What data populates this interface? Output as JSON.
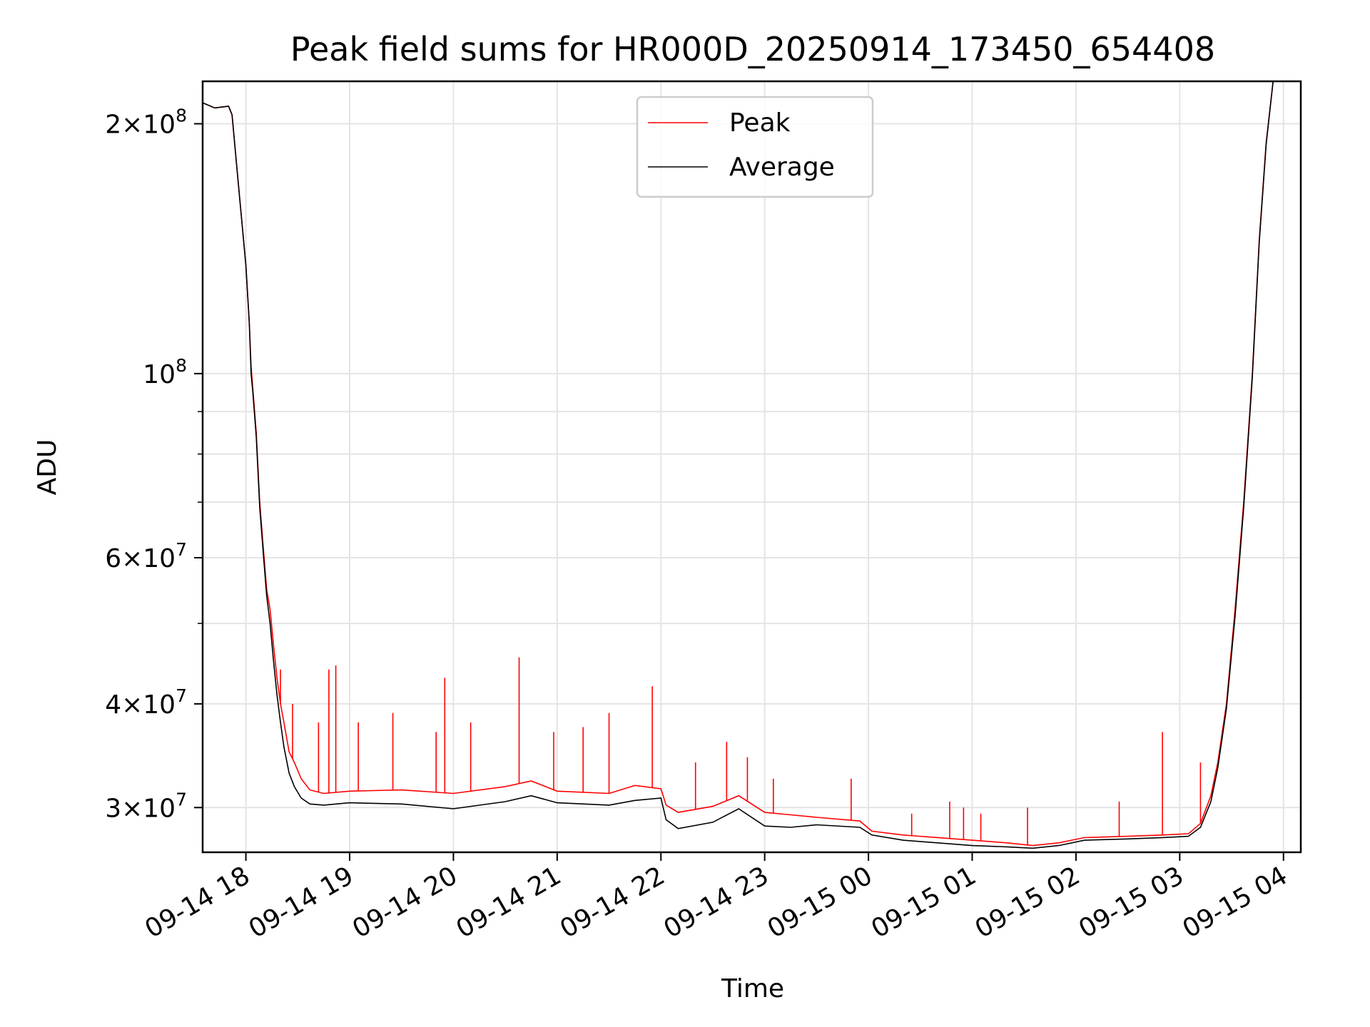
{
  "chart_data": {
    "type": "line",
    "title": "Peak field sums for HR000D_20250914_173450_654408",
    "xlabel": "Time",
    "ylabel": "ADU",
    "x_axis": {
      "start": "2025-09-14T17:35",
      "end": "2025-09-15T04:10",
      "ticks": [
        {
          "value": "2025-09-14T18:00",
          "label": "09-14 18"
        },
        {
          "value": "2025-09-14T19:00",
          "label": "09-14 19"
        },
        {
          "value": "2025-09-14T20:00",
          "label": "09-14 20"
        },
        {
          "value": "2025-09-14T21:00",
          "label": "09-14 21"
        },
        {
          "value": "2025-09-14T22:00",
          "label": "09-14 22"
        },
        {
          "value": "2025-09-14T23:00",
          "label": "09-14 23"
        },
        {
          "value": "2025-09-15T00:00",
          "label": "09-15 00"
        },
        {
          "value": "2025-09-15T01:00",
          "label": "09-15 01"
        },
        {
          "value": "2025-09-15T02:00",
          "label": "09-15 02"
        },
        {
          "value": "2025-09-15T03:00",
          "label": "09-15 03"
        },
        {
          "value": "2025-09-15T04:00",
          "label": "09-15 04"
        }
      ]
    },
    "y_axis": {
      "scale": "log",
      "ylim": [
        26500000,
        225000000
      ],
      "major_ticks": [
        {
          "value": 30000000,
          "mantissa": "3",
          "exponent": "7"
        },
        {
          "value": 40000000,
          "mantissa": "4",
          "exponent": "7"
        },
        {
          "value": 60000000,
          "mantissa": "6",
          "exponent": "7"
        },
        {
          "value": 100000000,
          "mantissa": "",
          "exponent": "8"
        },
        {
          "value": 200000000,
          "mantissa": "2",
          "exponent": "8"
        }
      ],
      "minor_ticks": [
        50000000,
        70000000,
        80000000,
        90000000
      ]
    },
    "grid": true,
    "legend_position": "upper center",
    "series": [
      {
        "name": "Peak",
        "color": "#ff0000",
        "points": [
          [
            "2025-09-14T17:35",
            212000000
          ],
          [
            "2025-09-14T17:42",
            209000000
          ],
          [
            "2025-09-14T17:50",
            210000000
          ],
          [
            "2025-09-14T17:52",
            205000000
          ],
          [
            "2025-09-14T17:55",
            175000000
          ],
          [
            "2025-09-14T18:00",
            135000000
          ],
          [
            "2025-09-14T18:02",
            115000000
          ],
          [
            "2025-09-14T18:03",
            102000000
          ],
          [
            "2025-09-14T18:04",
            96000000
          ],
          [
            "2025-09-14T18:06",
            85000000
          ],
          [
            "2025-09-14T18:08",
            70000000
          ],
          [
            "2025-09-14T18:10",
            62000000
          ],
          [
            "2025-09-14T18:12",
            55000000
          ],
          [
            "2025-09-14T18:14",
            52000000
          ],
          [
            "2025-09-14T18:16",
            47000000
          ],
          [
            "2025-09-14T18:18",
            43000000
          ],
          [
            "2025-09-14T18:20",
            40000000
          ],
          [
            "2025-09-14T18:22",
            38000000
          ],
          [
            "2025-09-14T18:25",
            35000000
          ],
          [
            "2025-09-14T18:28",
            34000000
          ],
          [
            "2025-09-14T18:32",
            32500000
          ],
          [
            "2025-09-14T18:37",
            31500000
          ],
          [
            "2025-09-14T18:45",
            31200000
          ],
          [
            "2025-09-14T19:00",
            31400000
          ],
          [
            "2025-09-14T19:30",
            31500000
          ],
          [
            "2025-09-14T20:00",
            31200000
          ],
          [
            "2025-09-14T20:30",
            31800000
          ],
          [
            "2025-09-14T20:45",
            32300000
          ],
          [
            "2025-09-14T21:00",
            31400000
          ],
          [
            "2025-09-14T21:30",
            31200000
          ],
          [
            "2025-09-14T21:45",
            31900000
          ],
          [
            "2025-09-14T22:00",
            31600000
          ],
          [
            "2025-09-14T22:03",
            30200000
          ],
          [
            "2025-09-14T22:10",
            29600000
          ],
          [
            "2025-09-14T22:30",
            30100000
          ],
          [
            "2025-09-14T22:45",
            31000000
          ],
          [
            "2025-09-14T23:00",
            29600000
          ],
          [
            "2025-09-14T23:15",
            29400000
          ],
          [
            "2025-09-14T23:30",
            29200000
          ],
          [
            "2025-09-14T23:55",
            28900000
          ],
          [
            "2025-09-15T00:02",
            28100000
          ],
          [
            "2025-09-15T00:20",
            27800000
          ],
          [
            "2025-09-15T00:40",
            27600000
          ],
          [
            "2025-09-15T01:00",
            27400000
          ],
          [
            "2025-09-15T01:20",
            27200000
          ],
          [
            "2025-09-15T01:35",
            27000000
          ],
          [
            "2025-09-15T01:50",
            27200000
          ],
          [
            "2025-09-15T02:05",
            27600000
          ],
          [
            "2025-09-15T02:30",
            27700000
          ],
          [
            "2025-09-15T02:50",
            27800000
          ],
          [
            "2025-09-15T03:05",
            27900000
          ],
          [
            "2025-09-15T03:12",
            28700000
          ],
          [
            "2025-09-15T03:18",
            31000000
          ],
          [
            "2025-09-15T03:22",
            34000000
          ],
          [
            "2025-09-15T03:27",
            40000000
          ],
          [
            "2025-09-15T03:32",
            52000000
          ],
          [
            "2025-09-15T03:37",
            70000000
          ],
          [
            "2025-09-15T03:42",
            100000000
          ],
          [
            "2025-09-15T03:46",
            145000000
          ],
          [
            "2025-09-15T03:50",
            190000000
          ],
          [
            "2025-09-15T03:54",
            225000000
          ]
        ],
        "spikes": [
          [
            "2025-09-14T18:20",
            44000000
          ],
          [
            "2025-09-14T18:27",
            40000000
          ],
          [
            "2025-09-14T18:42",
            38000000
          ],
          [
            "2025-09-14T18:48",
            44000000
          ],
          [
            "2025-09-14T18:52",
            44500000
          ],
          [
            "2025-09-14T19:05",
            38000000
          ],
          [
            "2025-09-14T19:25",
            39000000
          ],
          [
            "2025-09-14T19:50",
            37000000
          ],
          [
            "2025-09-14T19:55",
            43000000
          ],
          [
            "2025-09-14T20:10",
            38000000
          ],
          [
            "2025-09-14T20:38",
            45500000
          ],
          [
            "2025-09-14T20:58",
            37000000
          ],
          [
            "2025-09-14T21:15",
            37500000
          ],
          [
            "2025-09-14T21:30",
            39000000
          ],
          [
            "2025-09-14T21:55",
            42000000
          ],
          [
            "2025-09-14T22:20",
            34000000
          ],
          [
            "2025-09-14T22:38",
            36000000
          ],
          [
            "2025-09-14T22:50",
            34500000
          ],
          [
            "2025-09-14T23:05",
            32500000
          ],
          [
            "2025-09-14T23:50",
            32500000
          ],
          [
            "2025-09-15T00:25",
            29500000
          ],
          [
            "2025-09-15T00:47",
            30500000
          ],
          [
            "2025-09-15T00:55",
            30000000
          ],
          [
            "2025-09-15T01:05",
            29500000
          ],
          [
            "2025-09-15T01:32",
            30000000
          ],
          [
            "2025-09-15T02:25",
            30500000
          ],
          [
            "2025-09-15T02:50",
            37000000
          ],
          [
            "2025-09-15T03:12",
            34000000
          ]
        ]
      },
      {
        "name": "Average",
        "color": "#000000",
        "points": [
          [
            "2025-09-14T17:35",
            212000000
          ],
          [
            "2025-09-14T17:42",
            209000000
          ],
          [
            "2025-09-14T17:50",
            210000000
          ],
          [
            "2025-09-14T17:52",
            205000000
          ],
          [
            "2025-09-14T17:55",
            175000000
          ],
          [
            "2025-09-14T18:00",
            135000000
          ],
          [
            "2025-09-14T18:02",
            115000000
          ],
          [
            "2025-09-14T18:03",
            100000000
          ],
          [
            "2025-09-14T18:04",
            95000000
          ],
          [
            "2025-09-14T18:06",
            84000000
          ],
          [
            "2025-09-14T18:08",
            69000000
          ],
          [
            "2025-09-14T18:10",
            61000000
          ],
          [
            "2025-09-14T18:12",
            54000000
          ],
          [
            "2025-09-14T18:14",
            50000000
          ],
          [
            "2025-09-14T18:16",
            45000000
          ],
          [
            "2025-09-14T18:18",
            41000000
          ],
          [
            "2025-09-14T18:20",
            38000000
          ],
          [
            "2025-09-14T18:22",
            35500000
          ],
          [
            "2025-09-14T18:25",
            33000000
          ],
          [
            "2025-09-14T18:28",
            31800000
          ],
          [
            "2025-09-14T18:32",
            30800000
          ],
          [
            "2025-09-14T18:37",
            30300000
          ],
          [
            "2025-09-14T18:45",
            30200000
          ],
          [
            "2025-09-14T19:00",
            30400000
          ],
          [
            "2025-09-14T19:30",
            30300000
          ],
          [
            "2025-09-14T20:00",
            29900000
          ],
          [
            "2025-09-14T20:30",
            30500000
          ],
          [
            "2025-09-14T20:45",
            31000000
          ],
          [
            "2025-09-14T21:00",
            30400000
          ],
          [
            "2025-09-14T21:30",
            30200000
          ],
          [
            "2025-09-14T21:45",
            30600000
          ],
          [
            "2025-09-14T22:00",
            30800000
          ],
          [
            "2025-09-14T22:03",
            29000000
          ],
          [
            "2025-09-14T22:10",
            28300000
          ],
          [
            "2025-09-14T22:30",
            28800000
          ],
          [
            "2025-09-14T22:45",
            29900000
          ],
          [
            "2025-09-14T23:00",
            28500000
          ],
          [
            "2025-09-14T23:15",
            28400000
          ],
          [
            "2025-09-14T23:30",
            28600000
          ],
          [
            "2025-09-14T23:55",
            28400000
          ],
          [
            "2025-09-15T00:02",
            27800000
          ],
          [
            "2025-09-15T00:20",
            27400000
          ],
          [
            "2025-09-15T00:40",
            27200000
          ],
          [
            "2025-09-15T01:00",
            27000000
          ],
          [
            "2025-09-15T01:20",
            26900000
          ],
          [
            "2025-09-15T01:35",
            26800000
          ],
          [
            "2025-09-15T01:50",
            27000000
          ],
          [
            "2025-09-15T02:05",
            27400000
          ],
          [
            "2025-09-15T02:30",
            27500000
          ],
          [
            "2025-09-15T02:50",
            27600000
          ],
          [
            "2025-09-15T03:05",
            27700000
          ],
          [
            "2025-09-15T03:12",
            28400000
          ],
          [
            "2025-09-15T03:18",
            30500000
          ],
          [
            "2025-09-15T03:22",
            33500000
          ],
          [
            "2025-09-15T03:27",
            39500000
          ],
          [
            "2025-09-15T03:32",
            51000000
          ],
          [
            "2025-09-15T03:37",
            69000000
          ],
          [
            "2025-09-15T03:42",
            99000000
          ],
          [
            "2025-09-15T03:46",
            144000000
          ],
          [
            "2025-09-15T03:50",
            189000000
          ],
          [
            "2025-09-15T03:54",
            225000000
          ]
        ]
      }
    ]
  }
}
